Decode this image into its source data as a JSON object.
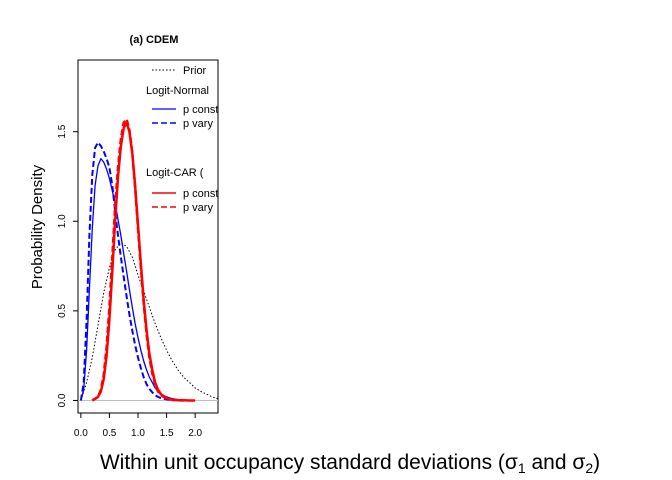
{
  "chart_data": {
    "type": "line",
    "title": "(a) CDEM",
    "ylabel": "Probability Density",
    "xlabel": {
      "prefix": "Within unit occupancy standard deviations (",
      "sym1": "σ",
      "sub1": "1",
      "mid": " and ",
      "sym2": "σ",
      "sub2": "2",
      "suffix": ")"
    },
    "xlim": [
      -0.05,
      2.4
    ],
    "ylim": [
      -0.07,
      1.9
    ],
    "x_ticks": [
      "0.0",
      "0.5",
      "1.0",
      "1.5",
      "2.0"
    ],
    "y_ticks": [
      "0.0",
      "0.5",
      "1.0",
      "1.5"
    ],
    "x_tick_values": [
      0,
      0.5,
      1,
      1.5,
      2
    ],
    "y_tick_values": [
      0,
      0.5,
      1,
      1.5
    ],
    "legend": {
      "entries": [
        {
          "label": "Prior",
          "kind": "entry",
          "series": "prior"
        },
        {
          "label": "Logit-Normal",
          "kind": "heading"
        },
        {
          "label": "p constant",
          "kind": "entry",
          "series": "ln_const"
        },
        {
          "label": "p vary",
          "kind": "entry",
          "series": "ln_vary"
        },
        {
          "label": "Logit-CAR (",
          "kind": "heading"
        },
        {
          "label": "p constant",
          "kind": "entry",
          "series": "car_const"
        },
        {
          "label": "p vary",
          "kind": "entry",
          "series": "car_vary"
        }
      ]
    },
    "series": [
      {
        "id": "prior",
        "color": "#000000",
        "dash": "dotted",
        "width": 1,
        "x": [
          0.0,
          0.1,
          0.2,
          0.3,
          0.4,
          0.5,
          0.6,
          0.7,
          0.8,
          0.9,
          1.0,
          1.1,
          1.2,
          1.3,
          1.4,
          1.5,
          1.6,
          1.7,
          1.8,
          1.9,
          2.0,
          2.1,
          2.2,
          2.3,
          2.4
        ],
        "y": [
          0.0,
          0.1,
          0.24,
          0.42,
          0.6,
          0.74,
          0.84,
          0.88,
          0.86,
          0.8,
          0.7,
          0.61,
          0.52,
          0.43,
          0.35,
          0.28,
          0.22,
          0.17,
          0.13,
          0.1,
          0.07,
          0.05,
          0.035,
          0.02,
          0.01
        ]
      },
      {
        "id": "ln_const",
        "color": "#0000ff",
        "dash": "solid",
        "width": 1.3,
        "x": [
          0.0,
          0.05,
          0.1,
          0.15,
          0.2,
          0.25,
          0.3,
          0.35,
          0.4,
          0.45,
          0.5,
          0.55,
          0.6,
          0.65,
          0.7,
          0.75,
          0.8,
          0.85,
          0.9,
          0.95,
          1.0,
          1.05,
          1.1,
          1.15,
          1.2,
          1.25,
          1.3,
          1.35,
          1.4,
          1.5,
          1.6,
          1.7,
          1.8,
          1.9
        ],
        "y": [
          0.0,
          0.06,
          0.28,
          0.62,
          0.96,
          1.2,
          1.31,
          1.35,
          1.33,
          1.29,
          1.24,
          1.17,
          1.1,
          1.01,
          0.92,
          0.82,
          0.72,
          0.62,
          0.52,
          0.43,
          0.35,
          0.28,
          0.22,
          0.17,
          0.13,
          0.1,
          0.07,
          0.05,
          0.035,
          0.02,
          0.01,
          0.005,
          0.002,
          0.001
        ]
      },
      {
        "id": "ln_vary",
        "color": "#0000ff",
        "dash": "dashed",
        "width": 2,
        "x": [
          0.0,
          0.05,
          0.1,
          0.15,
          0.2,
          0.25,
          0.3,
          0.35,
          0.4,
          0.45,
          0.5,
          0.55,
          0.6,
          0.65,
          0.7,
          0.75,
          0.8,
          0.85,
          0.9,
          0.95,
          1.0,
          1.05,
          1.1,
          1.15,
          1.2,
          1.25,
          1.3,
          1.35,
          1.4,
          1.5,
          1.6,
          1.7
        ],
        "y": [
          0.0,
          0.1,
          0.45,
          0.92,
          1.26,
          1.41,
          1.44,
          1.42,
          1.39,
          1.35,
          1.3,
          1.2,
          1.06,
          0.92,
          0.8,
          0.69,
          0.58,
          0.48,
          0.39,
          0.31,
          0.24,
          0.18,
          0.13,
          0.09,
          0.065,
          0.045,
          0.03,
          0.02,
          0.013,
          0.006,
          0.002,
          0.001
        ]
      },
      {
        "id": "car_const",
        "color": "#ff0000",
        "dash": "solid",
        "width": 2.5,
        "x": [
          0.2,
          0.3,
          0.35,
          0.4,
          0.45,
          0.5,
          0.55,
          0.6,
          0.65,
          0.7,
          0.75,
          0.8,
          0.85,
          0.9,
          0.95,
          1.0,
          1.05,
          1.1,
          1.15,
          1.2,
          1.25,
          1.3,
          1.35,
          1.4,
          1.5,
          1.6,
          1.7,
          1.8,
          1.9,
          2.0
        ],
        "y": [
          0.0,
          0.02,
          0.05,
          0.12,
          0.25,
          0.45,
          0.72,
          1.0,
          1.25,
          1.42,
          1.52,
          1.55,
          1.5,
          1.38,
          1.2,
          0.98,
          0.76,
          0.56,
          0.39,
          0.26,
          0.17,
          0.1,
          0.06,
          0.035,
          0.012,
          0.004,
          0.002,
          0.001,
          0.0,
          0.0
        ]
      },
      {
        "id": "car_vary",
        "color": "#ff0000",
        "dash": "dashed",
        "width": 2.5,
        "x": [
          0.2,
          0.3,
          0.35,
          0.4,
          0.45,
          0.5,
          0.55,
          0.6,
          0.65,
          0.7,
          0.75,
          0.8,
          0.85,
          0.9,
          0.95,
          1.0,
          1.05,
          1.1,
          1.15,
          1.2,
          1.25,
          1.3,
          1.35,
          1.4,
          1.5,
          1.6,
          1.7,
          1.8
        ],
        "y": [
          0.0,
          0.02,
          0.06,
          0.14,
          0.3,
          0.52,
          0.8,
          1.08,
          1.3,
          1.46,
          1.55,
          1.57,
          1.51,
          1.38,
          1.19,
          0.96,
          0.74,
          0.54,
          0.37,
          0.24,
          0.15,
          0.09,
          0.05,
          0.03,
          0.01,
          0.003,
          0.001,
          0.0
        ]
      }
    ],
    "grid": false
  }
}
